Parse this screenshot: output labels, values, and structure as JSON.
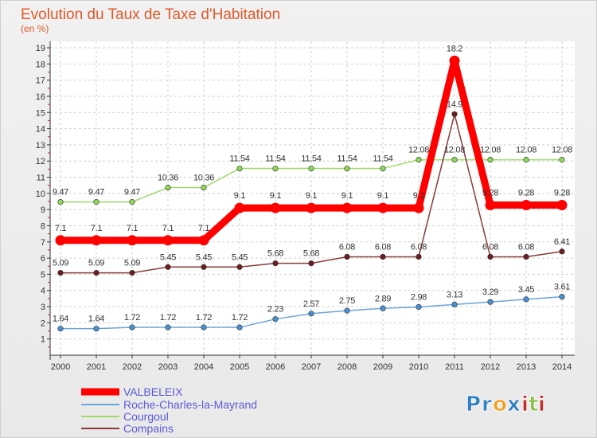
{
  "chart_data": {
    "type": "line",
    "title": "Evolution du Taux de Taxe d'Habitation",
    "subtitle": "(en %)",
    "x": [
      "2000",
      "2001",
      "2002",
      "2003",
      "2004",
      "2005",
      "2006",
      "2007",
      "2008",
      "2009",
      "2010",
      "2011",
      "2012",
      "2013",
      "2014"
    ],
    "ylim": [
      0,
      19
    ],
    "yticks": [
      1,
      2,
      3,
      4,
      5,
      6,
      7,
      8,
      9,
      10,
      11,
      12,
      13,
      14,
      15,
      16,
      17,
      18,
      19
    ],
    "grid": true,
    "legend_position": "bottom-left",
    "series": [
      {
        "name": "VALBELEIX",
        "color": "#ff0000",
        "values": [
          7.1,
          7.1,
          7.1,
          7.1,
          7.1,
          9.1,
          9.1,
          9.1,
          9.1,
          9.1,
          9.1,
          18.2,
          9.28,
          9.28,
          9.28
        ],
        "labels": [
          "7.1",
          "7.1",
          "7.1",
          "7.1",
          "7.1",
          "9.1",
          "9.1",
          "9.1",
          "9.1",
          "9.1",
          "9.1",
          "18.2",
          "9.28",
          "9.28",
          "9.28"
        ]
      },
      {
        "name": "Roche-Charles-la-Mayrand",
        "color": "#5b9bd5",
        "values": [
          1.64,
          1.64,
          1.72,
          1.72,
          1.72,
          1.72,
          2.23,
          2.57,
          2.75,
          2.89,
          2.98,
          3.13,
          3.29,
          3.45,
          3.61
        ],
        "labels": [
          "1.64",
          "1.64",
          "1.72",
          "1.72",
          "1.72",
          "1.72",
          "2.23",
          "2.57",
          "2.75",
          "2.89",
          "2.98",
          "3.13",
          "3.29",
          "3.45",
          "3.61"
        ]
      },
      {
        "name": "Courgoul",
        "color": "#8fd65a",
        "values": [
          9.47,
          9.47,
          9.47,
          10.36,
          10.36,
          11.54,
          11.54,
          11.54,
          11.54,
          11.54,
          12.08,
          12.08,
          12.08,
          12.08,
          12.08
        ],
        "labels": [
          "9.47",
          "9.47",
          "9.47",
          "10.36",
          "10.36",
          "11.54",
          "11.54",
          "11.54",
          "11.54",
          "11.54",
          "12.08",
          "12.08",
          "12.08",
          "12.08",
          "12.08"
        ]
      },
      {
        "name": "Compains",
        "color": "#8b2e2e",
        "values": [
          5.09,
          5.09,
          5.09,
          5.45,
          5.45,
          5.45,
          5.68,
          5.68,
          6.08,
          6.08,
          6.08,
          14.9,
          6.08,
          6.08,
          6.41
        ],
        "labels": [
          "5.09",
          "5.09",
          "5.09",
          "5.45",
          "5.45",
          "5.45",
          "5.68",
          "5.68",
          "6.08",
          "6.08",
          "6.08",
          "14.9",
          "6.08",
          "6.08",
          "6.41"
        ]
      }
    ]
  },
  "brand": {
    "text": "Proxiti",
    "letters": [
      "P",
      "r",
      "o",
      "x",
      "i",
      "t",
      "i"
    ],
    "colors": [
      "#2e7fc1",
      "#2e7fc1",
      "#f0a020",
      "#2e7fc1",
      "#c03030",
      "#8cc04a",
      "#c03030"
    ]
  }
}
